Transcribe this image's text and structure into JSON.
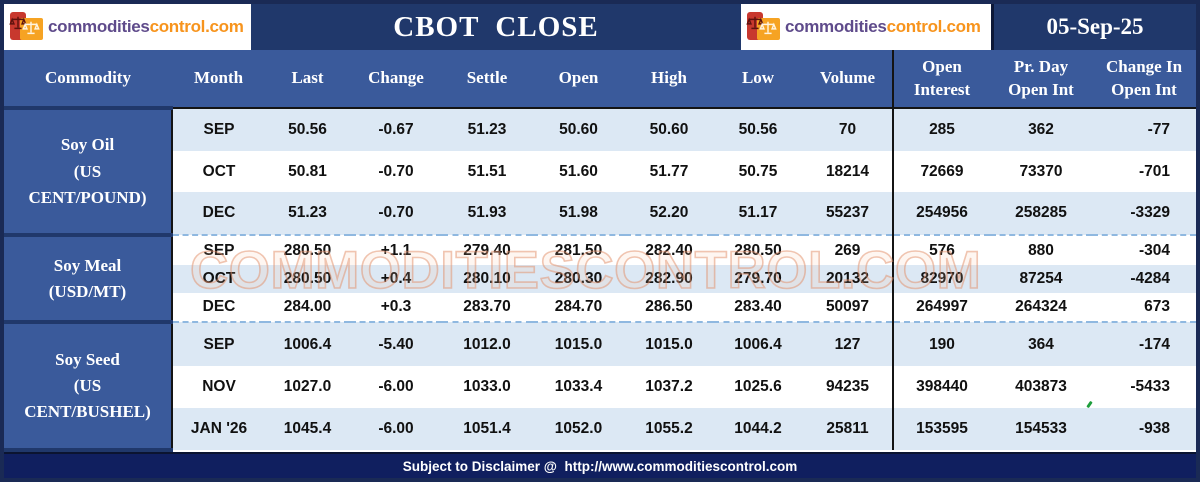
{
  "header": {
    "title": "CBOT  CLOSE",
    "date": "05-Sep-25"
  },
  "logo": {
    "part1": "commodities",
    "part2": "control.com"
  },
  "columns": [
    {
      "key": "commodity",
      "l1": "Commodity",
      "l2": ""
    },
    {
      "key": "month",
      "l1": "Month",
      "l2": ""
    },
    {
      "key": "last",
      "l1": "Last",
      "l2": ""
    },
    {
      "key": "change",
      "l1": "Change",
      "l2": ""
    },
    {
      "key": "settle",
      "l1": "Settle",
      "l2": ""
    },
    {
      "key": "open",
      "l1": "Open",
      "l2": ""
    },
    {
      "key": "high",
      "l1": "High",
      "l2": ""
    },
    {
      "key": "low",
      "l1": "Low",
      "l2": ""
    },
    {
      "key": "volume",
      "l1": "Volume",
      "l2": ""
    },
    {
      "key": "open_interest",
      "l1": "Open",
      "l2": "Interest"
    },
    {
      "key": "prday_open_int",
      "l1": "Pr. Day",
      "l2": "Open Int"
    },
    {
      "key": "change_open_int",
      "l1": "Change In",
      "l2": "Open Int"
    }
  ],
  "sections": [
    {
      "commodity_lines": [
        "Soy Oil",
        "(US",
        "CENT/POUND)"
      ],
      "rows": [
        {
          "month": "SEP",
          "last": "50.56",
          "change": "-0.67",
          "settle": "51.23",
          "open": "50.60",
          "high": "50.60",
          "low": "50.56",
          "volume": "70",
          "open_interest": "285",
          "prday_open_int": "362",
          "change_open_int": "-77"
        },
        {
          "month": "OCT",
          "last": "50.81",
          "change": "-0.70",
          "settle": "51.51",
          "open": "51.60",
          "high": "51.77",
          "low": "50.75",
          "volume": "18214",
          "open_interest": "72669",
          "prday_open_int": "73370",
          "change_open_int": "-701"
        },
        {
          "month": "DEC",
          "last": "51.23",
          "change": "-0.70",
          "settle": "51.93",
          "open": "51.98",
          "high": "52.20",
          "low": "51.17",
          "volume": "55237",
          "open_interest": "254956",
          "prday_open_int": "258285",
          "change_open_int": "-3329"
        }
      ]
    },
    {
      "commodity_lines": [
        "Soy Meal",
        "(USD/MT)"
      ],
      "rows": [
        {
          "month": "SEP",
          "last": "280.50",
          "change": "+1.1",
          "settle": "279.40",
          "open": "281.50",
          "high": "282.40",
          "low": "280.50",
          "volume": "269",
          "open_interest": "576",
          "prday_open_int": "880",
          "change_open_int": "-304"
        },
        {
          "month": "OCT",
          "last": "280.50",
          "change": "+0.4",
          "settle": "280.10",
          "open": "280.30",
          "high": "282.90",
          "low": "279.70",
          "volume": "20132",
          "open_interest": "82970",
          "prday_open_int": "87254",
          "change_open_int": "-4284"
        },
        {
          "month": "DEC",
          "last": "284.00",
          "change": "+0.3",
          "settle": "283.70",
          "open": "284.70",
          "high": "286.50",
          "low": "283.40",
          "volume": "50097",
          "open_interest": "264997",
          "prday_open_int": "264324",
          "change_open_int": "673"
        }
      ]
    },
    {
      "commodity_lines": [
        "Soy Seed",
        "(US",
        "CENT/BUSHEL)"
      ],
      "rows": [
        {
          "month": "SEP",
          "last": "1006.4",
          "change": "-5.40",
          "settle": "1012.0",
          "open": "1015.0",
          "high": "1015.0",
          "low": "1006.4",
          "volume": "127",
          "open_interest": "190",
          "prday_open_int": "364",
          "change_open_int": "-174"
        },
        {
          "month": "NOV",
          "last": "1027.0",
          "change": "-6.00",
          "settle": "1033.0",
          "open": "1033.4",
          "high": "1037.2",
          "low": "1025.6",
          "volume": "94235",
          "open_interest": "398440",
          "prday_open_int": "403873",
          "change_open_int": "-5433"
        },
        {
          "month": "JAN '26",
          "last": "1045.4",
          "change": "-6.00",
          "settle": "1051.4",
          "open": "1052.0",
          "high": "1055.2",
          "low": "1044.2",
          "volume": "25811",
          "open_interest": "153595",
          "prday_open_int": "154533",
          "change_open_int": "-938"
        }
      ]
    }
  ],
  "watermark": "COMMODITIESCONTROL.COM",
  "footer": "Subject to Disclaimer @  http://www.commoditiescontrol.com",
  "colors": {
    "navy_dark": "#20386B",
    "navy_footer": "#101F5F",
    "header_blue": "#3A5A9B",
    "row_light_blue": "#DCE8F4",
    "row_white": "#FFFFFF",
    "dashed_separator": "#8FB8E0",
    "logo_purple": "#5F4B8B",
    "logo_orange": "#F7941D",
    "logo_red": "#C8382E",
    "watermark_salmon": "#E28D67",
    "tick_green": "#1E9E3C"
  }
}
